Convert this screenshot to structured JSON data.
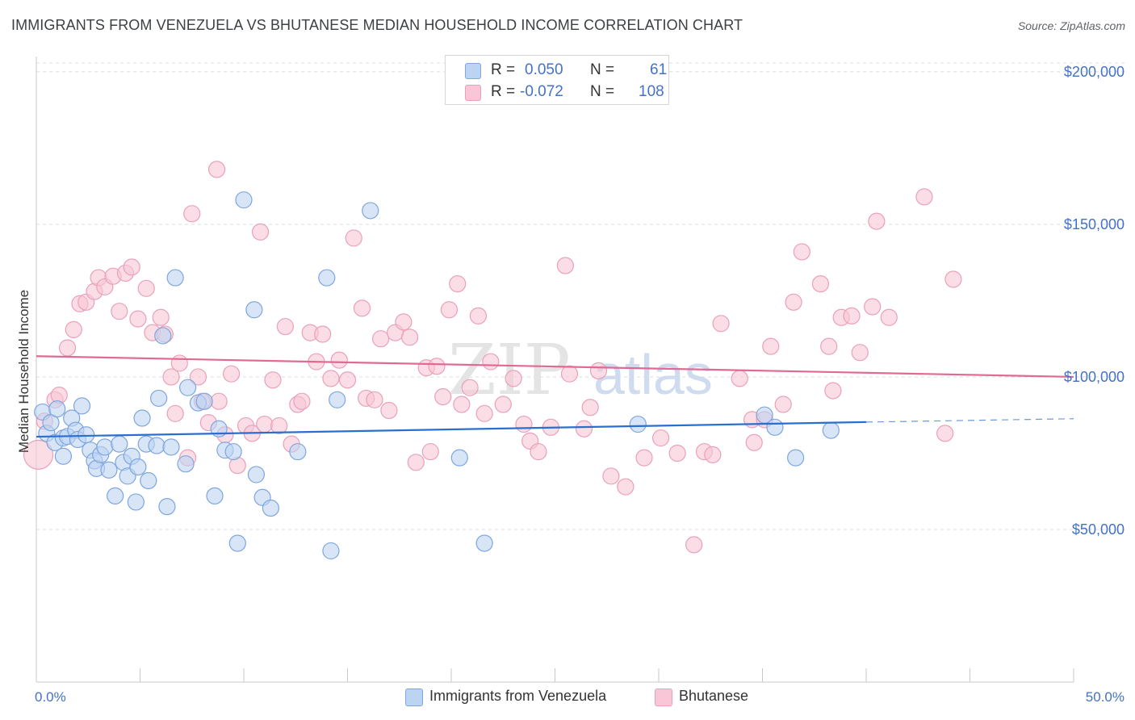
{
  "title": "IMMIGRANTS FROM VENEZUELA VS BHUTANESE MEDIAN HOUSEHOLD INCOME CORRELATION CHART",
  "source": "Source: ZipAtlas.com",
  "watermark": {
    "zip": "ZIP",
    "atlas": "atlas"
  },
  "legend": {
    "rows": [
      {
        "r_label": "R =",
        "r_value": "0.050",
        "n_label": "N =",
        "n_value": "61"
      },
      {
        "r_label": "R =",
        "r_value": "-0.072",
        "n_label": "N =",
        "n_value": "108"
      }
    ]
  },
  "colors": {
    "blue_fill": "#bcd3f2",
    "blue_stroke": "#7ea6de",
    "blue_line": "#2a6fcf",
    "pink_fill": "#f8c6d6",
    "pink_stroke": "#eaa0ba",
    "pink_line": "#e06a93",
    "grid": "#dadce0",
    "axis_text": "#4472c4"
  },
  "chart_data": {
    "type": "scatter",
    "title": "IMMIGRANTS FROM VENEZUELA VS BHUTANESE MEDIAN HOUSEHOLD INCOME CORRELATION CHART",
    "xlabel": "",
    "ylabel": "Median Household Income",
    "xlim": [
      0,
      50
    ],
    "ylim": [
      0,
      205000
    ],
    "x_tick_labels": [
      "0.0%",
      "50.0%"
    ],
    "y_ticks": [
      50000,
      100000,
      150000,
      200000
    ],
    "y_tick_labels": [
      "$50,000",
      "$100,000",
      "$150,000",
      "$200,000"
    ],
    "grid": true,
    "legend_position": "top-center",
    "series": [
      {
        "name": "Immigrants from Venezuela",
        "color": "#7ea6de",
        "trend": {
          "x": [
            0,
            40
          ],
          "y": [
            80400,
            85200
          ],
          "dashed_to_x": 50,
          "dashed_to_y": 86300
        },
        "points": [
          [
            0.3,
            88500,
            10
          ],
          [
            0.5,
            81500,
            10
          ],
          [
            0.7,
            85000,
            10
          ],
          [
            0.9,
            78500,
            10
          ],
          [
            1.0,
            89500,
            10
          ],
          [
            1.3,
            80000,
            10
          ],
          [
            1.3,
            74000,
            10
          ],
          [
            1.5,
            80500,
            10
          ],
          [
            1.7,
            86500,
            10
          ],
          [
            1.9,
            82500,
            10
          ],
          [
            2.0,
            79500,
            10
          ],
          [
            2.2,
            90500,
            10
          ],
          [
            2.4,
            81000,
            10
          ],
          [
            2.6,
            76000,
            10
          ],
          [
            2.8,
            72500,
            10
          ],
          [
            2.9,
            70000,
            10
          ],
          [
            3.1,
            74500,
            10
          ],
          [
            3.3,
            77000,
            10
          ],
          [
            3.5,
            69500,
            10
          ],
          [
            3.8,
            61000,
            10
          ],
          [
            4.0,
            78000,
            10
          ],
          [
            4.2,
            72000,
            10
          ],
          [
            4.4,
            67500,
            10
          ],
          [
            4.6,
            74000,
            10
          ],
          [
            4.8,
            59000,
            10
          ],
          [
            4.9,
            70500,
            10
          ],
          [
            5.1,
            86500,
            10
          ],
          [
            5.3,
            78000,
            10
          ],
          [
            5.4,
            66000,
            10
          ],
          [
            5.8,
            77500,
            10
          ],
          [
            5.9,
            93000,
            10
          ],
          [
            6.1,
            113500,
            10
          ],
          [
            6.3,
            57500,
            10
          ],
          [
            6.5,
            77000,
            10
          ],
          [
            6.7,
            132500,
            10
          ],
          [
            7.2,
            71500,
            10
          ],
          [
            7.3,
            96500,
            10
          ],
          [
            7.8,
            91500,
            10
          ],
          [
            8.1,
            92000,
            10
          ],
          [
            8.6,
            61000,
            10
          ],
          [
            8.8,
            83000,
            10
          ],
          [
            9.1,
            76000,
            10
          ],
          [
            9.5,
            75500,
            10
          ],
          [
            9.7,
            45500,
            10
          ],
          [
            10.0,
            158000,
            10
          ],
          [
            10.5,
            122000,
            10
          ],
          [
            10.6,
            68000,
            10
          ],
          [
            10.9,
            60500,
            10
          ],
          [
            11.3,
            57000,
            10
          ],
          [
            12.6,
            75500,
            10
          ],
          [
            14.0,
            132500,
            10
          ],
          [
            14.2,
            43000,
            10
          ],
          [
            14.5,
            92500,
            10
          ],
          [
            16.1,
            154500,
            10
          ],
          [
            20.4,
            73500,
            10
          ],
          [
            21.6,
            45500,
            10
          ],
          [
            29.0,
            84500,
            10
          ],
          [
            35.1,
            87500,
            10
          ],
          [
            35.6,
            83500,
            10
          ],
          [
            36.6,
            73500,
            10
          ],
          [
            38.3,
            82500,
            10
          ]
        ]
      },
      {
        "name": "Bhutanese",
        "color": "#eaa0ba",
        "trend": {
          "x": [
            0,
            50
          ],
          "y": [
            106800,
            100000
          ]
        },
        "points": [
          [
            0.1,
            74500,
            18
          ],
          [
            0.4,
            85500,
            10
          ],
          [
            0.9,
            92500,
            10
          ],
          [
            1.1,
            94000,
            10
          ],
          [
            1.5,
            109500,
            10
          ],
          [
            1.8,
            115500,
            10
          ],
          [
            2.1,
            124000,
            10
          ],
          [
            2.4,
            124500,
            10
          ],
          [
            2.8,
            128000,
            10
          ],
          [
            3.0,
            132500,
            10
          ],
          [
            3.3,
            129500,
            10
          ],
          [
            3.7,
            133000,
            10
          ],
          [
            4.0,
            121500,
            10
          ],
          [
            4.3,
            134000,
            10
          ],
          [
            4.6,
            136000,
            10
          ],
          [
            4.9,
            119000,
            10
          ],
          [
            5.3,
            129000,
            10
          ],
          [
            5.6,
            114500,
            10
          ],
          [
            6.0,
            119500,
            10
          ],
          [
            6.2,
            114000,
            10
          ],
          [
            6.5,
            100000,
            10
          ],
          [
            6.7,
            88000,
            10
          ],
          [
            6.9,
            104500,
            10
          ],
          [
            7.3,
            73500,
            10
          ],
          [
            7.5,
            153500,
            10
          ],
          [
            7.8,
            100000,
            10
          ],
          [
            8.0,
            92000,
            10
          ],
          [
            8.3,
            85000,
            10
          ],
          [
            8.8,
            92000,
            10
          ],
          [
            8.7,
            168000,
            10
          ],
          [
            9.1,
            81000,
            10
          ],
          [
            9.4,
            101000,
            10
          ],
          [
            9.7,
            71000,
            10
          ],
          [
            10.1,
            84000,
            10
          ],
          [
            10.4,
            81500,
            10
          ],
          [
            10.8,
            147500,
            10
          ],
          [
            11.0,
            84500,
            10
          ],
          [
            11.4,
            99000,
            10
          ],
          [
            11.7,
            84000,
            10
          ],
          [
            12.0,
            116500,
            10
          ],
          [
            12.3,
            78000,
            10
          ],
          [
            12.6,
            91000,
            10
          ],
          [
            12.8,
            92000,
            10
          ],
          [
            13.2,
            114500,
            10
          ],
          [
            13.5,
            105000,
            10
          ],
          [
            13.8,
            114000,
            10
          ],
          [
            14.2,
            99500,
            10
          ],
          [
            14.6,
            105500,
            10
          ],
          [
            15.0,
            99000,
            10
          ],
          [
            15.3,
            145500,
            10
          ],
          [
            15.7,
            122500,
            10
          ],
          [
            15.9,
            93000,
            10
          ],
          [
            16.3,
            92500,
            10
          ],
          [
            16.6,
            112500,
            10
          ],
          [
            17.0,
            89000,
            10
          ],
          [
            17.3,
            114500,
            10
          ],
          [
            17.7,
            118000,
            10
          ],
          [
            18.0,
            113000,
            10
          ],
          [
            18.3,
            72000,
            10
          ],
          [
            18.8,
            103000,
            10
          ],
          [
            19.0,
            75500,
            10
          ],
          [
            19.3,
            103500,
            10
          ],
          [
            19.6,
            93500,
            10
          ],
          [
            19.9,
            122000,
            10
          ],
          [
            20.3,
            130500,
            10
          ],
          [
            20.5,
            91000,
            10
          ],
          [
            20.9,
            96500,
            10
          ],
          [
            21.3,
            120000,
            10
          ],
          [
            21.6,
            88000,
            10
          ],
          [
            21.9,
            105000,
            10
          ],
          [
            22.5,
            91000,
            10
          ],
          [
            23.0,
            99500,
            10
          ],
          [
            23.5,
            84500,
            10
          ],
          [
            23.8,
            79000,
            10
          ],
          [
            24.2,
            75500,
            10
          ],
          [
            24.8,
            83500,
            10
          ],
          [
            25.5,
            136500,
            10
          ],
          [
            25.7,
            101000,
            10
          ],
          [
            26.4,
            83000,
            10
          ],
          [
            26.7,
            90000,
            10
          ],
          [
            27.1,
            102000,
            10
          ],
          [
            27.7,
            67500,
            10
          ],
          [
            28.4,
            64000,
            10
          ],
          [
            29.3,
            73500,
            10
          ],
          [
            30.1,
            80000,
            10
          ],
          [
            30.9,
            75000,
            10
          ],
          [
            31.7,
            45000,
            10
          ],
          [
            32.2,
            75500,
            10
          ],
          [
            32.6,
            74500,
            10
          ],
          [
            33.0,
            117500,
            10
          ],
          [
            33.9,
            99500,
            10
          ],
          [
            34.5,
            86000,
            10
          ],
          [
            34.6,
            78500,
            10
          ],
          [
            35.4,
            110000,
            10
          ],
          [
            35.1,
            86000,
            10
          ],
          [
            36.0,
            91000,
            10
          ],
          [
            36.5,
            124500,
            10
          ],
          [
            36.9,
            141000,
            10
          ],
          [
            37.8,
            130500,
            10
          ],
          [
            38.2,
            110000,
            10
          ],
          [
            38.4,
            95500,
            10
          ],
          [
            38.8,
            119500,
            10
          ],
          [
            39.3,
            120000,
            10
          ],
          [
            39.7,
            108000,
            10
          ],
          [
            40.3,
            123000,
            10
          ],
          [
            40.5,
            151000,
            10
          ],
          [
            41.1,
            119500,
            10
          ],
          [
            42.8,
            159000,
            10
          ],
          [
            43.8,
            81500,
            10
          ],
          [
            44.2,
            132000,
            10
          ]
        ]
      }
    ]
  },
  "bottom_legend": [
    {
      "label": "Immigrants from Venezuela"
    },
    {
      "label": "Bhutanese"
    }
  ]
}
